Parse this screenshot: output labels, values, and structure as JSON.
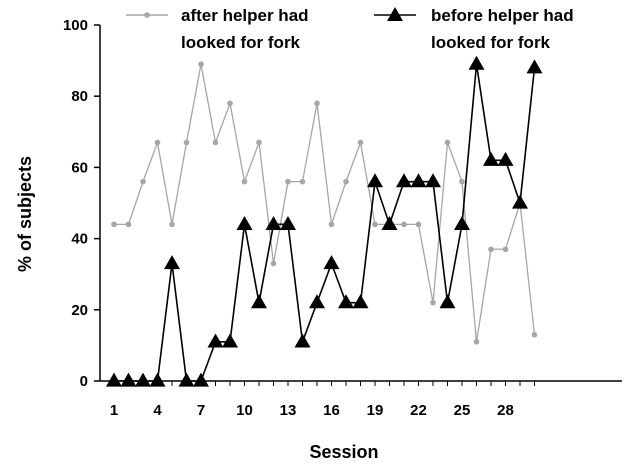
{
  "chart_data": {
    "type": "line",
    "xlabel": "Session",
    "ylabel": "% of subjects",
    "xlim": [
      1,
      30
    ],
    "ylim": [
      0,
      100
    ],
    "x_ticks": [
      "1",
      "4",
      "7",
      "10",
      "13",
      "16",
      "19",
      "22",
      "25",
      "28"
    ],
    "y_ticks": [
      "0",
      "20",
      "40",
      "60",
      "80",
      "100"
    ],
    "legend_position": "top",
    "x": [
      1,
      2,
      3,
      4,
      5,
      6,
      7,
      8,
      9,
      10,
      11,
      12,
      13,
      14,
      15,
      16,
      17,
      18,
      19,
      20,
      21,
      22,
      23,
      24,
      25,
      26,
      27,
      28,
      29,
      30
    ],
    "series": [
      {
        "name": "after helper had looked for fork",
        "legend_lines": [
          "after helper had",
          "looked for fork"
        ],
        "color": "#a6a6a6",
        "marker": "dot",
        "values": [
          44,
          44,
          56,
          67,
          44,
          67,
          89,
          67,
          78,
          56,
          67,
          33,
          56,
          56,
          78,
          44,
          56,
          67,
          44,
          44,
          44,
          44,
          22,
          67,
          56,
          11,
          37,
          37,
          50,
          13
        ]
      },
      {
        "name": "before helper had looked for fork",
        "legend_lines": [
          "before helper had",
          "looked for fork"
        ],
        "color": "#000000",
        "marker": "triangle",
        "values": [
          0,
          0,
          0,
          0,
          33,
          0,
          0,
          11,
          11,
          44,
          22,
          44,
          44,
          11,
          22,
          33,
          22,
          22,
          56,
          44,
          56,
          56,
          56,
          22,
          44,
          89,
          62,
          62,
          50,
          88
        ]
      }
    ]
  }
}
